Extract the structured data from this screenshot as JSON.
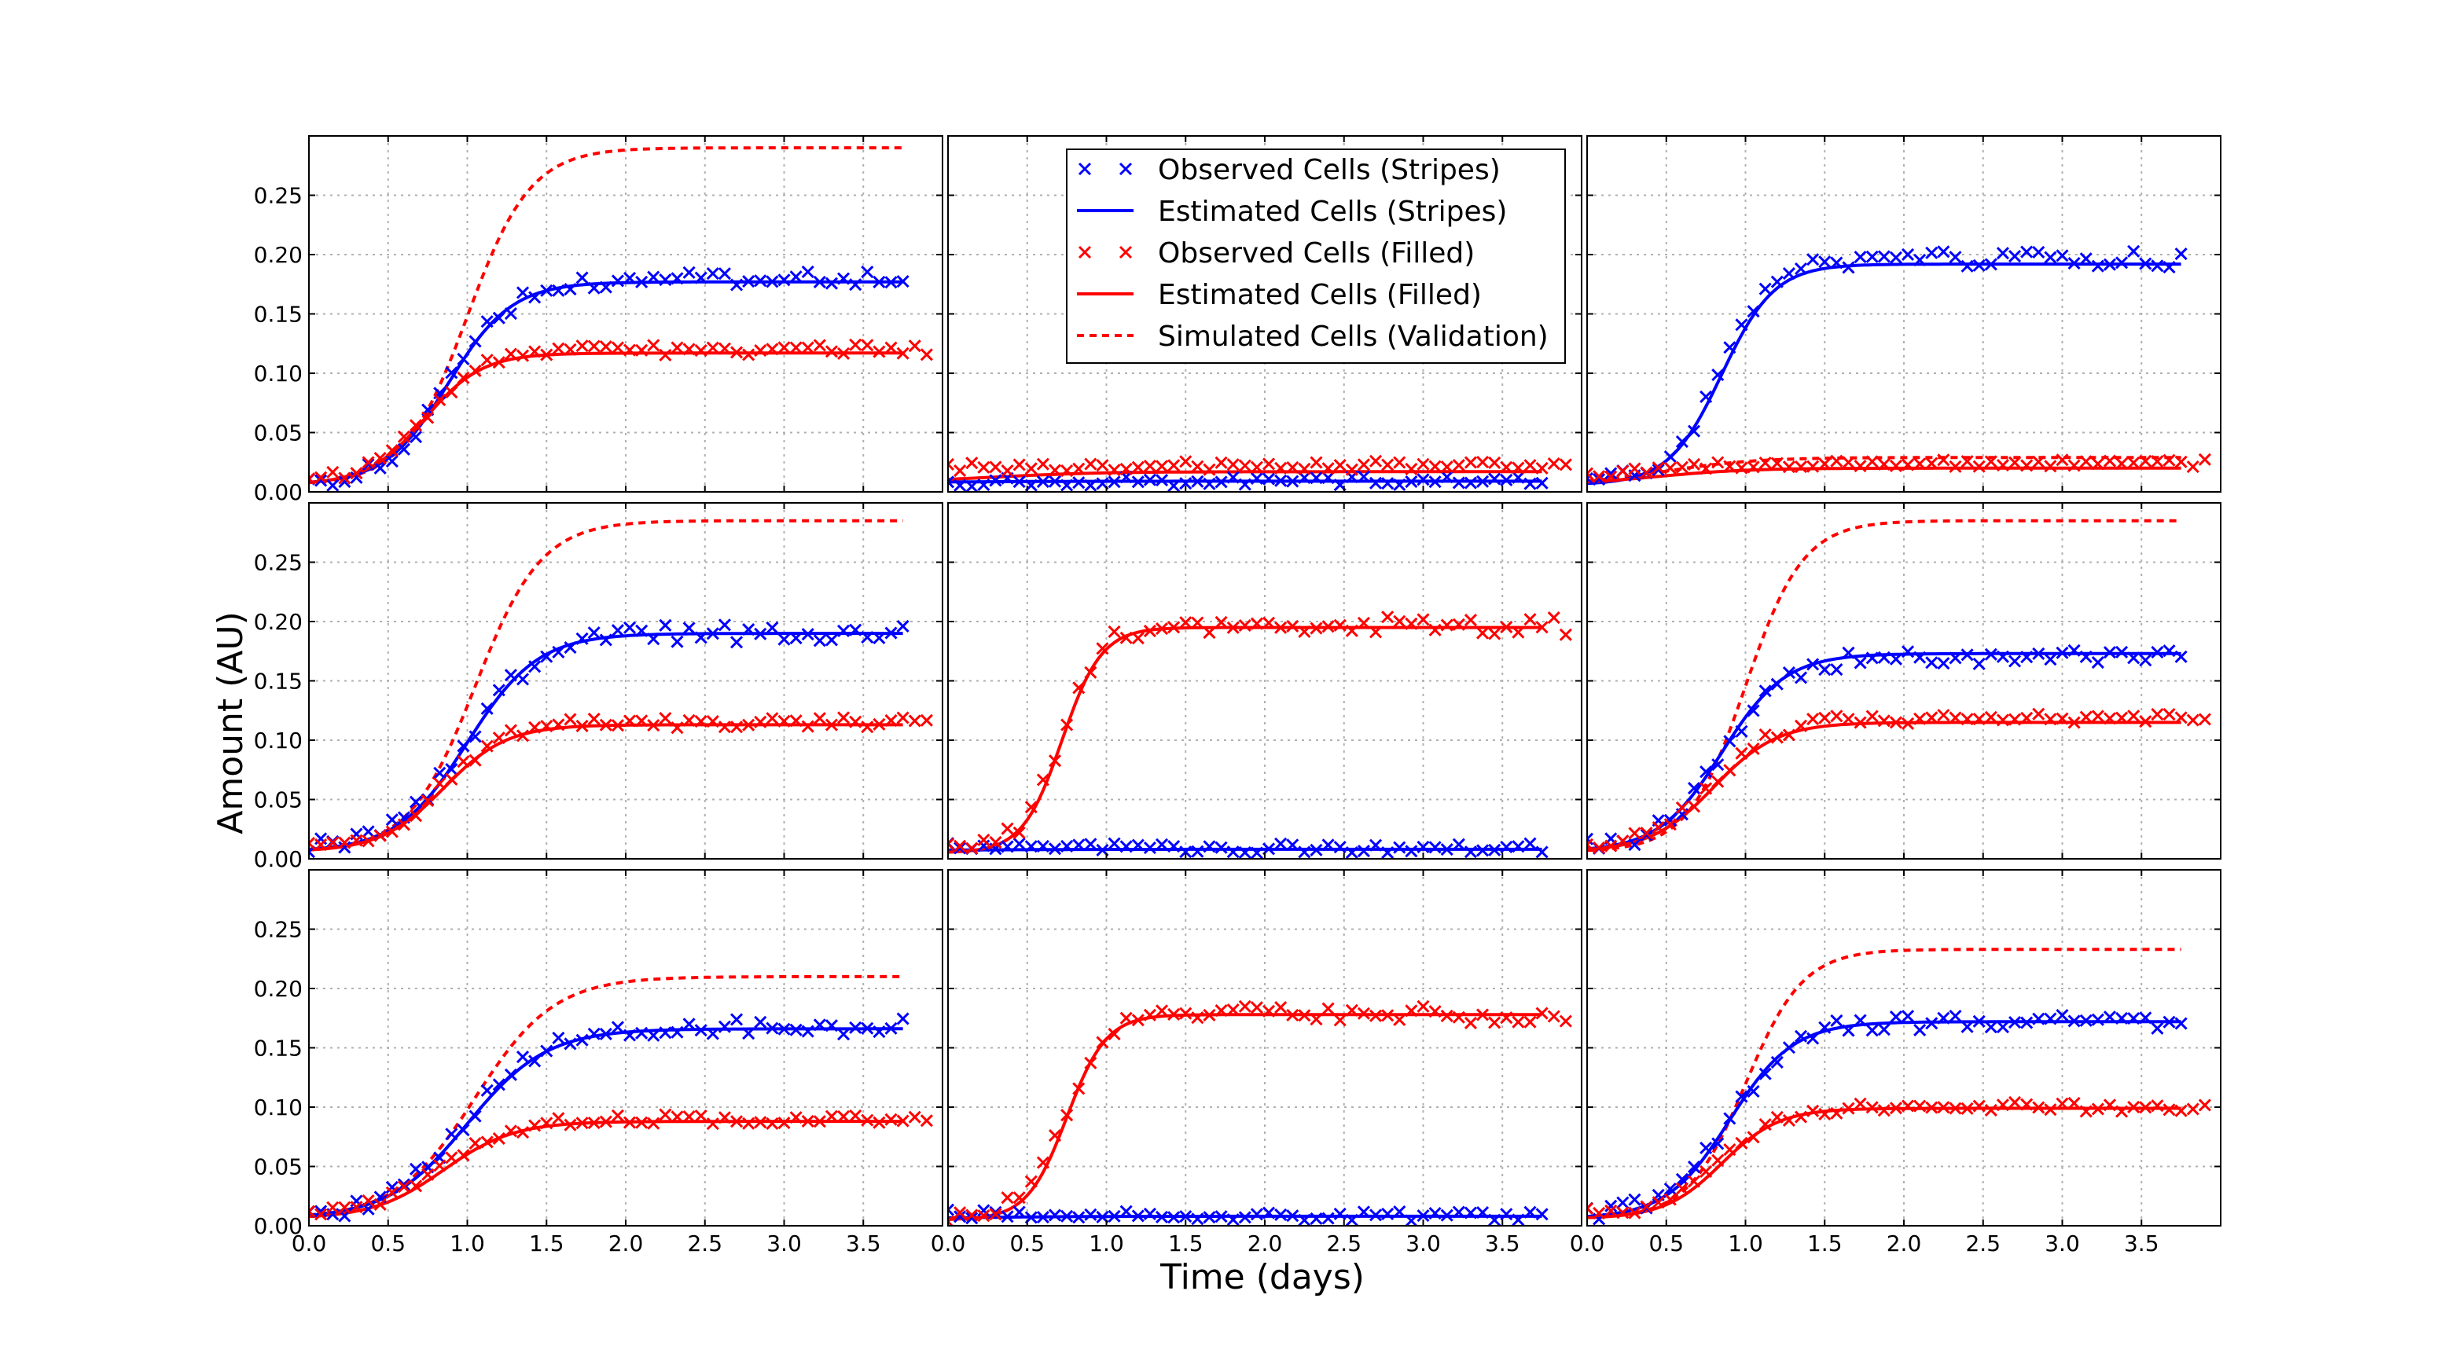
{
  "figure": {
    "xlabel": "Time (days)",
    "ylabel": "Amount (AU)"
  },
  "colors": {
    "stripes": "#0000ff",
    "filled": "#ff0000"
  },
  "legend": {
    "placement": "top-center of second panel",
    "entries": [
      {
        "label": "Observed Cells (Stripes)",
        "style": "marker-x",
        "color": "#0000ff"
      },
      {
        "label": "Estimated Cells (Stripes)",
        "style": "solid",
        "color": "#0000ff"
      },
      {
        "label": "Observed Cells (Filled)",
        "style": "marker-x",
        "color": "#ff0000"
      },
      {
        "label": "Estimated Cells (Filled)",
        "style": "solid",
        "color": "#ff0000"
      },
      {
        "label": "Simulated Cells (Validation)",
        "style": "dashed",
        "color": "#ff0000"
      }
    ]
  },
  "chart_data": {
    "type": "line",
    "layout": "3x3 grid of panels, shared axes",
    "xlim": [
      0,
      4.0
    ],
    "ylim": [
      0,
      0.3
    ],
    "xticks": [
      "0.0",
      "0.5",
      "1.0",
      "1.5",
      "2.0",
      "2.5",
      "3.0",
      "3.5"
    ],
    "yticks": [
      "0.00",
      "0.05",
      "0.10",
      "0.15",
      "0.20",
      "0.25"
    ],
    "grid": true,
    "panels": [
      {
        "observed_stripes": {
          "plateau": 0.18,
          "rate": 5.0,
          "midpoint": 0.9,
          "start": 0.008
        },
        "observed_filled": {
          "plateau": 0.12,
          "rate": 5.5,
          "midpoint": 0.75,
          "start": 0.01
        },
        "estimated_stripes": {
          "plateau": 0.177,
          "rate": 5.0,
          "midpoint": 0.88,
          "start": 0.006
        },
        "estimated_filled": {
          "plateau": 0.117,
          "rate": 5.5,
          "midpoint": 0.73,
          "start": 0.006
        },
        "simulated_validation": {
          "plateau": 0.29,
          "rate": 5.0,
          "midpoint": 1.0,
          "start": 0.006
        }
      },
      {
        "observed_stripes": {
          "plateau": 0.009,
          "rate": 3.0,
          "midpoint": 0.2,
          "start": 0.008
        },
        "observed_filled": {
          "plateau": 0.022,
          "rate": 3.0,
          "midpoint": 0.3,
          "start": 0.02
        },
        "estimated_stripes": {
          "plateau": 0.009,
          "rate": 3.0,
          "midpoint": 0.2,
          "start": 0.008
        },
        "estimated_filled": {
          "plateau": 0.017,
          "rate": 3.0,
          "midpoint": 0.3,
          "start": 0.008
        },
        "simulated_validation": null
      },
      {
        "observed_stripes": {
          "plateau": 0.196,
          "rate": 6.0,
          "midpoint": 0.85,
          "start": 0.008
        },
        "observed_filled": {
          "plateau": 0.024,
          "rate": 3.5,
          "midpoint": 0.5,
          "start": 0.012
        },
        "estimated_stripes": {
          "plateau": 0.192,
          "rate": 6.0,
          "midpoint": 0.85,
          "start": 0.006
        },
        "estimated_filled": {
          "plateau": 0.02,
          "rate": 3.5,
          "midpoint": 0.45,
          "start": 0.006
        },
        "simulated_validation": {
          "plateau": 0.029,
          "rate": 3.5,
          "midpoint": 0.5,
          "start": 0.006
        }
      },
      {
        "observed_stripes": {
          "plateau": 0.19,
          "rate": 4.5,
          "midpoint": 1.0,
          "start": 0.008
        },
        "observed_filled": {
          "plateau": 0.115,
          "rate": 5.0,
          "midpoint": 0.85,
          "start": 0.01
        },
        "estimated_stripes": {
          "plateau": 0.19,
          "rate": 4.5,
          "midpoint": 1.0,
          "start": 0.006
        },
        "estimated_filled": {
          "plateau": 0.113,
          "rate": 5.0,
          "midpoint": 0.85,
          "start": 0.006
        },
        "simulated_validation": {
          "plateau": 0.285,
          "rate": 4.8,
          "midpoint": 1.05,
          "start": 0.006
        }
      },
      {
        "observed_stripes": {
          "plateau": 0.009,
          "rate": 3.0,
          "midpoint": 0.2,
          "start": 0.012
        },
        "observed_filled": {
          "plateau": 0.196,
          "rate": 8.0,
          "midpoint": 0.72,
          "start": 0.01
        },
        "estimated_stripes": {
          "plateau": 0.008,
          "rate": 3.0,
          "midpoint": 0.2,
          "start": 0.007
        },
        "estimated_filled": {
          "plateau": 0.195,
          "rate": 8.0,
          "midpoint": 0.72,
          "start": 0.005
        },
        "simulated_validation": null
      },
      {
        "observed_stripes": {
          "plateau": 0.17,
          "rate": 5.0,
          "midpoint": 0.85,
          "start": 0.008
        },
        "observed_filled": {
          "plateau": 0.118,
          "rate": 5.0,
          "midpoint": 0.8,
          "start": 0.01
        },
        "estimated_stripes": {
          "plateau": 0.173,
          "rate": 5.0,
          "midpoint": 0.85,
          "start": 0.006
        },
        "estimated_filled": {
          "plateau": 0.115,
          "rate": 5.0,
          "midpoint": 0.8,
          "start": 0.006
        },
        "simulated_validation": {
          "plateau": 0.285,
          "rate": 5.5,
          "midpoint": 1.0,
          "start": 0.006
        }
      },
      {
        "observed_stripes": {
          "plateau": 0.168,
          "rate": 4.0,
          "midpoint": 1.0,
          "start": 0.008
        },
        "observed_filled": {
          "plateau": 0.09,
          "rate": 4.5,
          "midpoint": 0.85,
          "start": 0.01
        },
        "estimated_stripes": {
          "plateau": 0.166,
          "rate": 4.0,
          "midpoint": 1.0,
          "start": 0.006
        },
        "estimated_filled": {
          "plateau": 0.088,
          "rate": 4.5,
          "midpoint": 0.85,
          "start": 0.006
        },
        "simulated_validation": {
          "plateau": 0.21,
          "rate": 4.0,
          "midpoint": 1.05,
          "start": 0.006
        }
      },
      {
        "observed_stripes": {
          "plateau": 0.008,
          "rate": 3.0,
          "midpoint": 0.2,
          "start": 0.012
        },
        "observed_filled": {
          "plateau": 0.178,
          "rate": 8.0,
          "midpoint": 0.75,
          "start": 0.01
        },
        "estimated_stripes": {
          "plateau": 0.008,
          "rate": 3.0,
          "midpoint": 0.2,
          "start": 0.006
        },
        "estimated_filled": {
          "plateau": 0.178,
          "rate": 8.0,
          "midpoint": 0.75,
          "start": 0.005
        },
        "simulated_validation": null
      },
      {
        "observed_stripes": {
          "plateau": 0.172,
          "rate": 5.0,
          "midpoint": 0.9,
          "start": 0.008
        },
        "observed_filled": {
          "plateau": 0.1,
          "rate": 5.5,
          "midpoint": 0.85,
          "start": 0.01
        },
        "estimated_stripes": {
          "plateau": 0.172,
          "rate": 5.0,
          "midpoint": 0.9,
          "start": 0.006
        },
        "estimated_filled": {
          "plateau": 0.099,
          "rate": 5.5,
          "midpoint": 0.85,
          "start": 0.006
        },
        "simulated_validation": {
          "plateau": 0.233,
          "rate": 5.5,
          "midpoint": 1.0,
          "start": 0.006
        }
      }
    ]
  }
}
